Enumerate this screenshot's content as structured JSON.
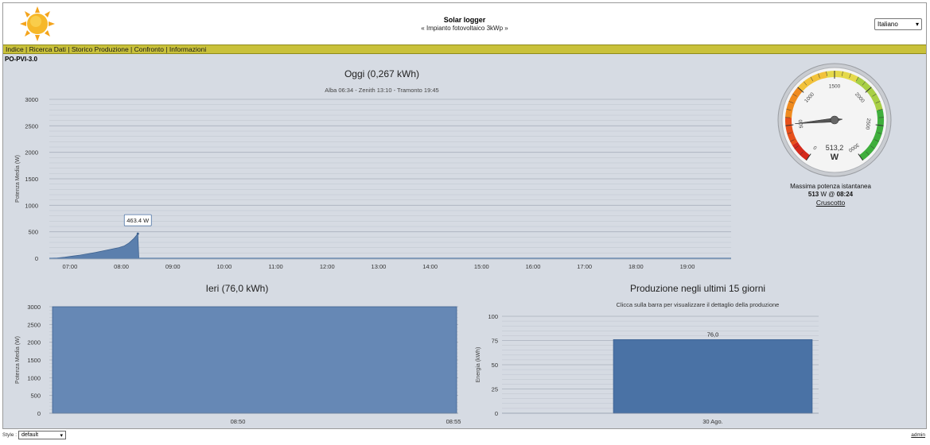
{
  "app": {
    "title": "Solar logger",
    "subtitle": "« Impianto fotovoltaico 3kWp »",
    "language": "Italiano"
  },
  "nav": {
    "items": [
      "Indice",
      "Ricerca Dati",
      "Storico Produzione",
      "Confronto",
      "Informazioni"
    ]
  },
  "device": "PO-PVI-3.0",
  "colors": {
    "accent": "#c9c13a",
    "area_fill": "#5b7fad",
    "bar_fill": "#4a72a5",
    "background": "#d6dbe3"
  },
  "today": {
    "title": "Oggi (0,267 kWh)",
    "subtitle": "Alba 06:34 - Zenith 13:10 - Tramonto 19:45",
    "tooltip": "463.4 W"
  },
  "gauge": {
    "value_text": "513,2",
    "unit": "W",
    "value": 513.2,
    "min": 0,
    "max": 3000,
    "caption": "Massima potenza istantanea",
    "max_value": "513",
    "max_unit": "W @",
    "max_time": "08:24",
    "link": "Cruscotto",
    "ticks": [
      "0",
      "500",
      "1000",
      "1500",
      "2000",
      "2500",
      "3000"
    ]
  },
  "yesterday": {
    "title": "Ieri (76,0 kWh)"
  },
  "last15": {
    "title": "Produzione negli ultimi 15 giorni",
    "subtitle": "Clicca sulla barra per visualizzare il dettaglio della produzione"
  },
  "footer": {
    "style_label": "Style :",
    "style_value": "default",
    "admin": "admin"
  },
  "chart_data": [
    {
      "type": "area",
      "title": "Oggi (0,267 kWh)",
      "subtitle": "Alba 06:34 - Zenith 13:10 - Tramonto 19:45",
      "ylabel": "Potenza Media (W)",
      "ylim": [
        0,
        3000
      ],
      "yticks": [
        0,
        500,
        1000,
        1500,
        2000,
        2500,
        3000
      ],
      "xticks": [
        "07:00",
        "08:00",
        "09:00",
        "10:00",
        "11:00",
        "12:00",
        "13:00",
        "14:00",
        "15:00",
        "16:00",
        "17:00",
        "18:00",
        "19:00"
      ],
      "x_start_hour": 6.6,
      "x_end_hour": 19.85,
      "points": [
        {
          "t": 6.6,
          "v": 0
        },
        {
          "t": 6.75,
          "v": 5
        },
        {
          "t": 6.9,
          "v": 20
        },
        {
          "t": 7.05,
          "v": 40
        },
        {
          "t": 7.2,
          "v": 60
        },
        {
          "t": 7.35,
          "v": 85
        },
        {
          "t": 7.5,
          "v": 110
        },
        {
          "t": 7.65,
          "v": 140
        },
        {
          "t": 7.8,
          "v": 170
        },
        {
          "t": 7.95,
          "v": 200
        },
        {
          "t": 8.05,
          "v": 230
        },
        {
          "t": 8.15,
          "v": 290
        },
        {
          "t": 8.25,
          "v": 380
        },
        {
          "t": 8.32,
          "v": 463.4
        },
        {
          "t": 8.34,
          "v": 0
        }
      ],
      "grid": true
    },
    {
      "type": "area",
      "title": "Ieri (76,0 kWh)",
      "ylabel": "Potenza Media (W)",
      "ylim": [
        0,
        3000
      ],
      "yticks": [
        0,
        500,
        1000,
        1500,
        2000,
        2500,
        3000
      ],
      "xticks": [
        "08:50",
        "08:55"
      ],
      "x": [
        0,
        1
      ],
      "values": [
        3000,
        3000
      ],
      "grid": true
    },
    {
      "type": "bar",
      "title": "Produzione negli ultimi 15 giorni",
      "subtitle": "Clicca sulla barra per visualizzare il dettaglio della produzione",
      "ylabel": "Energia (kWh)",
      "ylim": [
        0,
        100
      ],
      "yticks": [
        0,
        25,
        50,
        75,
        100
      ],
      "categories": [
        "30 Ago."
      ],
      "values": [
        76.0
      ],
      "data_labels": [
        "76,0"
      ],
      "grid": true
    },
    {
      "type": "gauge",
      "value": 513.2,
      "range": [
        0,
        3000
      ],
      "ticks": [
        0,
        500,
        1000,
        1500,
        2000,
        2500,
        3000
      ],
      "unit": "W"
    }
  ]
}
